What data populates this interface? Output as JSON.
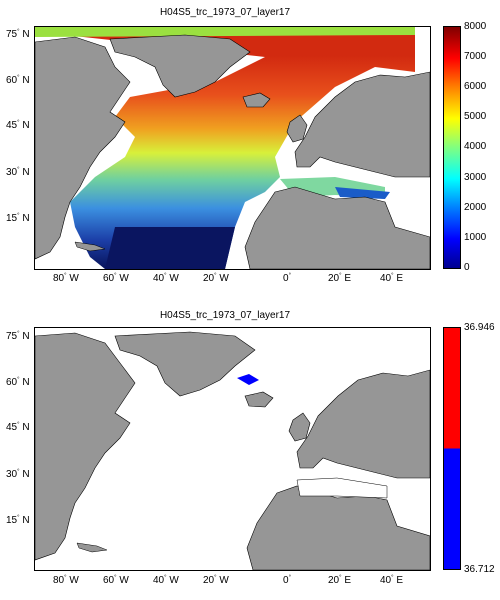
{
  "panels": [
    {
      "title": "H04S5_trc_1973_07_layer17",
      "colorbar": {
        "type": "jet",
        "labels": [
          "8000",
          "7000",
          "6000",
          "5000",
          "4000",
          "3000",
          "2000",
          "1000",
          "0"
        ],
        "min": 0,
        "max": 8000
      }
    },
    {
      "title": "H04S5_trc_1973_07_layer17",
      "colorbar": {
        "type": "two-color",
        "colors": [
          "#ff0000",
          "#0000ff"
        ],
        "labels": [
          "36.946",
          "36.712"
        ],
        "min": 36.712,
        "max": 36.946
      }
    }
  ],
  "axes": {
    "lon_labels": [
      "80",
      "W",
      "60",
      "W",
      "40",
      "W",
      "20",
      "W",
      "0",
      "20",
      "E",
      "40",
      "E"
    ],
    "lon_ticks": [
      {
        "deg": "80",
        "hem": "W"
      },
      {
        "deg": "60",
        "hem": "W"
      },
      {
        "deg": "40",
        "hem": "W"
      },
      {
        "deg": "20",
        "hem": "W"
      },
      {
        "deg": "0",
        "hem": ""
      },
      {
        "deg": "20",
        "hem": "E"
      },
      {
        "deg": "40",
        "hem": "E"
      }
    ],
    "lat_ticks": [
      {
        "deg": "75",
        "hem": "N"
      },
      {
        "deg": "60",
        "hem": "N"
      },
      {
        "deg": "45",
        "hem": "N"
      },
      {
        "deg": "30",
        "hem": "N"
      },
      {
        "deg": "15",
        "hem": "N"
      }
    ]
  },
  "colors": {
    "land": "#969696",
    "ocean_empty": "#ffffff",
    "coast": "#000000"
  }
}
